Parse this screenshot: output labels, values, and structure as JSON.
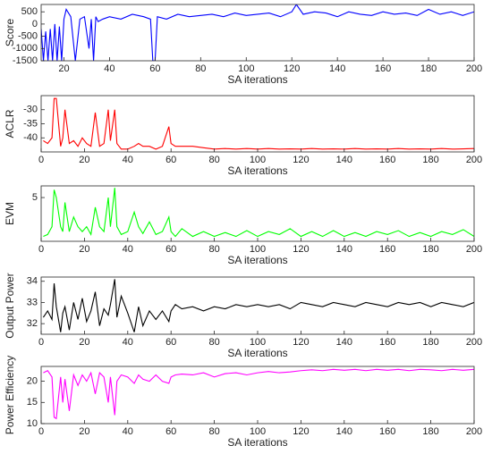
{
  "chart_data": [
    {
      "type": "line",
      "xlabel": "SA iterations",
      "ylabel": "Score",
      "color": "#0000ff",
      "x": [
        10,
        11,
        12,
        13,
        14,
        15,
        16,
        17,
        18,
        19,
        20,
        21,
        23,
        25,
        27,
        29,
        31,
        32,
        33,
        34,
        35,
        37,
        40,
        45,
        50,
        55,
        58,
        59,
        60,
        61,
        65,
        70,
        75,
        80,
        85,
        90,
        95,
        100,
        105,
        110,
        115,
        120,
        122,
        125,
        130,
        135,
        140,
        145,
        150,
        155,
        160,
        165,
        170,
        175,
        180,
        185,
        190,
        195,
        200
      ],
      "values": [
        -200,
        -1500,
        -300,
        -1500,
        -200,
        -1500,
        0,
        -1500,
        -100,
        -1500,
        200,
        600,
        300,
        -1500,
        200,
        300,
        -1000,
        200,
        -1500,
        300,
        100,
        200,
        300,
        200,
        400,
        300,
        200,
        -1500,
        -1500,
        300,
        200,
        400,
        300,
        350,
        400,
        300,
        450,
        350,
        400,
        450,
        300,
        500,
        800,
        400,
        500,
        450,
        300,
        500,
        400,
        350,
        500,
        400,
        450,
        350,
        600,
        400,
        500,
        350,
        500
      ],
      "xlim": [
        10,
        200
      ],
      "xticks": [
        20,
        40,
        60,
        80,
        100,
        120,
        140,
        160,
        180,
        200
      ],
      "ylim": [
        -1500,
        800
      ],
      "yticks": [
        -1500,
        -1000,
        -500,
        0,
        500
      ]
    },
    {
      "type": "line",
      "xlabel": "SA iterations",
      "ylabel": "ACLR",
      "color": "#ff0000",
      "x": [
        1,
        3,
        5,
        6,
        7,
        9,
        10,
        11,
        13,
        15,
        17,
        19,
        21,
        23,
        25,
        27,
        29,
        31,
        32,
        34,
        35,
        37,
        40,
        43,
        45,
        47,
        50,
        53,
        56,
        59,
        60,
        62,
        65,
        70,
        75,
        80,
        85,
        90,
        95,
        100,
        105,
        110,
        115,
        120,
        125,
        130,
        135,
        140,
        145,
        150,
        155,
        160,
        165,
        170,
        175,
        180,
        185,
        190,
        195,
        200
      ],
      "values": [
        -41,
        -42,
        -40,
        -26,
        -26,
        -43,
        -40,
        -30,
        -42,
        -41,
        -43,
        -40,
        -42,
        -43,
        -31,
        -43,
        -42,
        -30,
        -41,
        -30,
        -42,
        -44,
        -44,
        -43,
        -42,
        -43,
        -43,
        -44,
        -43,
        -36,
        -42,
        -43,
        -43,
        -43,
        -43.5,
        -44,
        -43.8,
        -44,
        -43.8,
        -44,
        -43.8,
        -44,
        -43.9,
        -44,
        -43.8,
        -44,
        -43.9,
        -44,
        -43.8,
        -44,
        -43.9,
        -44,
        -43.8,
        -44,
        -43.9,
        -44,
        -43.8,
        -44,
        -43.9,
        -43.8
      ],
      "xlim": [
        0,
        200
      ],
      "xticks": [
        0,
        20,
        40,
        60,
        80,
        100,
        120,
        140,
        160,
        180,
        200
      ],
      "ylim": [
        -45,
        -25
      ],
      "yticks": [
        -40,
        -35,
        -30
      ]
    },
    {
      "type": "line",
      "xlabel": "SA iterations",
      "ylabel": "EVM",
      "color": "#00ff00",
      "x": [
        1,
        3,
        5,
        6,
        7,
        9,
        10,
        11,
        13,
        15,
        17,
        19,
        21,
        23,
        25,
        27,
        29,
        31,
        32,
        34,
        35,
        37,
        40,
        43,
        45,
        47,
        50,
        53,
        56,
        59,
        60,
        62,
        65,
        70,
        75,
        80,
        85,
        90,
        95,
        100,
        105,
        110,
        115,
        120,
        125,
        130,
        135,
        140,
        145,
        150,
        155,
        160,
        165,
        170,
        175,
        180,
        185,
        190,
        195,
        200
      ],
      "values": [
        1,
        1.2,
        2,
        5.8,
        5,
        2,
        1.5,
        4.5,
        1.5,
        3,
        2,
        1.5,
        2,
        1.2,
        4,
        2,
        1.5,
        5,
        2,
        6,
        2,
        1.2,
        1.5,
        3.5,
        2,
        1.3,
        2.5,
        1.2,
        1.5,
        3,
        1.5,
        1,
        1.8,
        1,
        1.5,
        1,
        1.4,
        1,
        1.6,
        1,
        1.5,
        1.2,
        1.8,
        1,
        1.5,
        1,
        1.6,
        1,
        1.4,
        1,
        1.5,
        1.2,
        1.6,
        1,
        1.4,
        1,
        1.5,
        1.2,
        1.7,
        1
      ],
      "xlim": [
        0,
        200
      ],
      "xticks": [
        0,
        20,
        40,
        60,
        80,
        100,
        120,
        140,
        160,
        180,
        200
      ],
      "ylim": [
        0.5,
        6.2
      ],
      "yticks": [
        5
      ]
    },
    {
      "type": "line",
      "xlabel": "SA iterations",
      "ylabel": "Output Power",
      "color": "#000000",
      "x": [
        1,
        3,
        5,
        6,
        7,
        9,
        10,
        11,
        13,
        15,
        17,
        19,
        21,
        23,
        25,
        27,
        29,
        31,
        32,
        34,
        35,
        37,
        40,
        43,
        45,
        47,
        50,
        53,
        56,
        59,
        60,
        62,
        65,
        70,
        75,
        80,
        85,
        90,
        95,
        100,
        105,
        110,
        115,
        120,
        125,
        130,
        135,
        140,
        145,
        150,
        155,
        160,
        165,
        170,
        175,
        180,
        185,
        190,
        195,
        200
      ],
      "values": [
        32.3,
        32.6,
        32.2,
        33.9,
        32.8,
        31.6,
        32.5,
        32.8,
        31.7,
        33,
        32.2,
        33.2,
        32.1,
        32.6,
        33.5,
        31.9,
        32.7,
        32.4,
        32.9,
        34.1,
        32.3,
        33.3,
        32.5,
        31.6,
        32.8,
        31.9,
        32.6,
        32.2,
        32.6,
        32.1,
        32.6,
        32.9,
        32.7,
        32.8,
        32.6,
        32.8,
        32.7,
        32.9,
        32.8,
        32.9,
        32.8,
        32.9,
        32.7,
        33,
        32.9,
        32.8,
        33,
        32.9,
        32.8,
        33,
        32.9,
        32.8,
        33,
        32.9,
        33,
        32.8,
        33,
        32.9,
        32.8,
        33
      ],
      "xlim": [
        0,
        200
      ],
      "xticks": [
        0,
        20,
        40,
        60,
        80,
        100,
        120,
        140,
        160,
        180,
        200
      ],
      "ylim": [
        31.5,
        34.2
      ],
      "yticks": [
        32,
        33,
        34
      ]
    },
    {
      "type": "line",
      "xlabel": "SA iterations",
      "ylabel": "Power Efficiency",
      "color": "#ff00ff",
      "x": [
        1,
        3,
        5,
        6,
        7,
        9,
        10,
        11,
        13,
        15,
        17,
        19,
        21,
        23,
        25,
        27,
        29,
        31,
        32,
        34,
        35,
        37,
        40,
        43,
        45,
        47,
        50,
        53,
        56,
        59,
        60,
        62,
        65,
        70,
        75,
        80,
        85,
        90,
        95,
        100,
        105,
        110,
        115,
        120,
        125,
        130,
        135,
        140,
        145,
        150,
        155,
        160,
        165,
        170,
        175,
        180,
        185,
        190,
        195,
        200
      ],
      "values": [
        22,
        22.5,
        21,
        11.5,
        11.2,
        21,
        15,
        20.5,
        13,
        21.5,
        19,
        21.5,
        20,
        22,
        17,
        22,
        21,
        15,
        21,
        12,
        20,
        21.5,
        21,
        19.5,
        21.5,
        20.5,
        20,
        21.5,
        20,
        19.5,
        21,
        21.5,
        21.7,
        21.5,
        22,
        21,
        21.8,
        22,
        21.5,
        22,
        22.3,
        22,
        22.2,
        22.5,
        22.7,
        22.5,
        22.8,
        22.6,
        22.8,
        22.5,
        22.8,
        22.6,
        22.8,
        22.5,
        22.8,
        22.7,
        22.5,
        22.8,
        22.6,
        22.8
      ],
      "xlim": [
        0,
        200
      ],
      "xticks": [
        0,
        20,
        40,
        60,
        80,
        100,
        120,
        140,
        160,
        180,
        200
      ],
      "ylim": [
        10,
        23.5
      ],
      "yticks": [
        10,
        15,
        20
      ]
    }
  ]
}
